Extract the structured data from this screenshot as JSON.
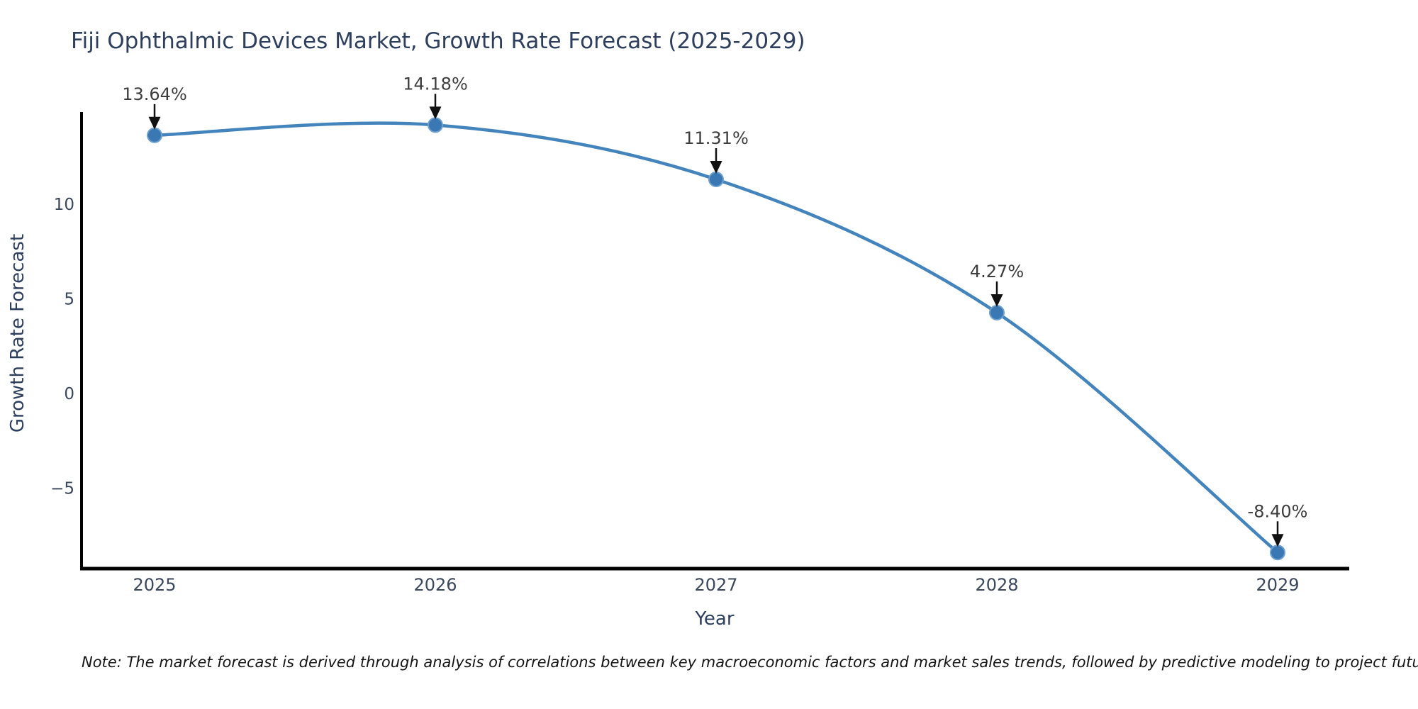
{
  "title": "Fiji Ophthalmic Devices Market, Growth Rate Forecast (2025-2029)",
  "note": "Note: The market forecast is derived through analysis of correlations between key macroeconomic factors and market sales trends, followed by predictive modeling to project future sales",
  "chart_data": {
    "type": "line",
    "title": "Fiji Ophthalmic Devices Market, Growth Rate Forecast (2025-2029)",
    "x": [
      2025,
      2026,
      2027,
      2028,
      2029
    ],
    "values": [
      13.64,
      14.18,
      11.31,
      4.27,
      -8.4
    ],
    "point_labels": [
      "13.64%",
      "14.18%",
      "11.31%",
      "4.27%",
      "-8.40%"
    ],
    "xlabel": "Year",
    "ylabel": "Growth Rate Forecast",
    "xticks": [
      "2025",
      "2026",
      "2027",
      "2028",
      "2029"
    ],
    "yticks": [
      10,
      5,
      0,
      -5
    ],
    "ylim": [
      -9.25,
      14.9
    ],
    "xlim": [
      2024.74,
      2029.26
    ],
    "grid": false,
    "legend": false,
    "smooth_spline": true,
    "annotations": "black arrows pointing down from each percentage label to its data point",
    "colors": {
      "line": "#4384bd",
      "marker_fill": "#3a78b3",
      "marker_edge": "#6da0cc",
      "axis": "#000000",
      "tick_label": "#3b475c",
      "title_text": "#2e3f5e",
      "annotation_text": "#3d3d3d",
      "annotation_arrow": "#111111",
      "background": "#ffffff"
    }
  }
}
